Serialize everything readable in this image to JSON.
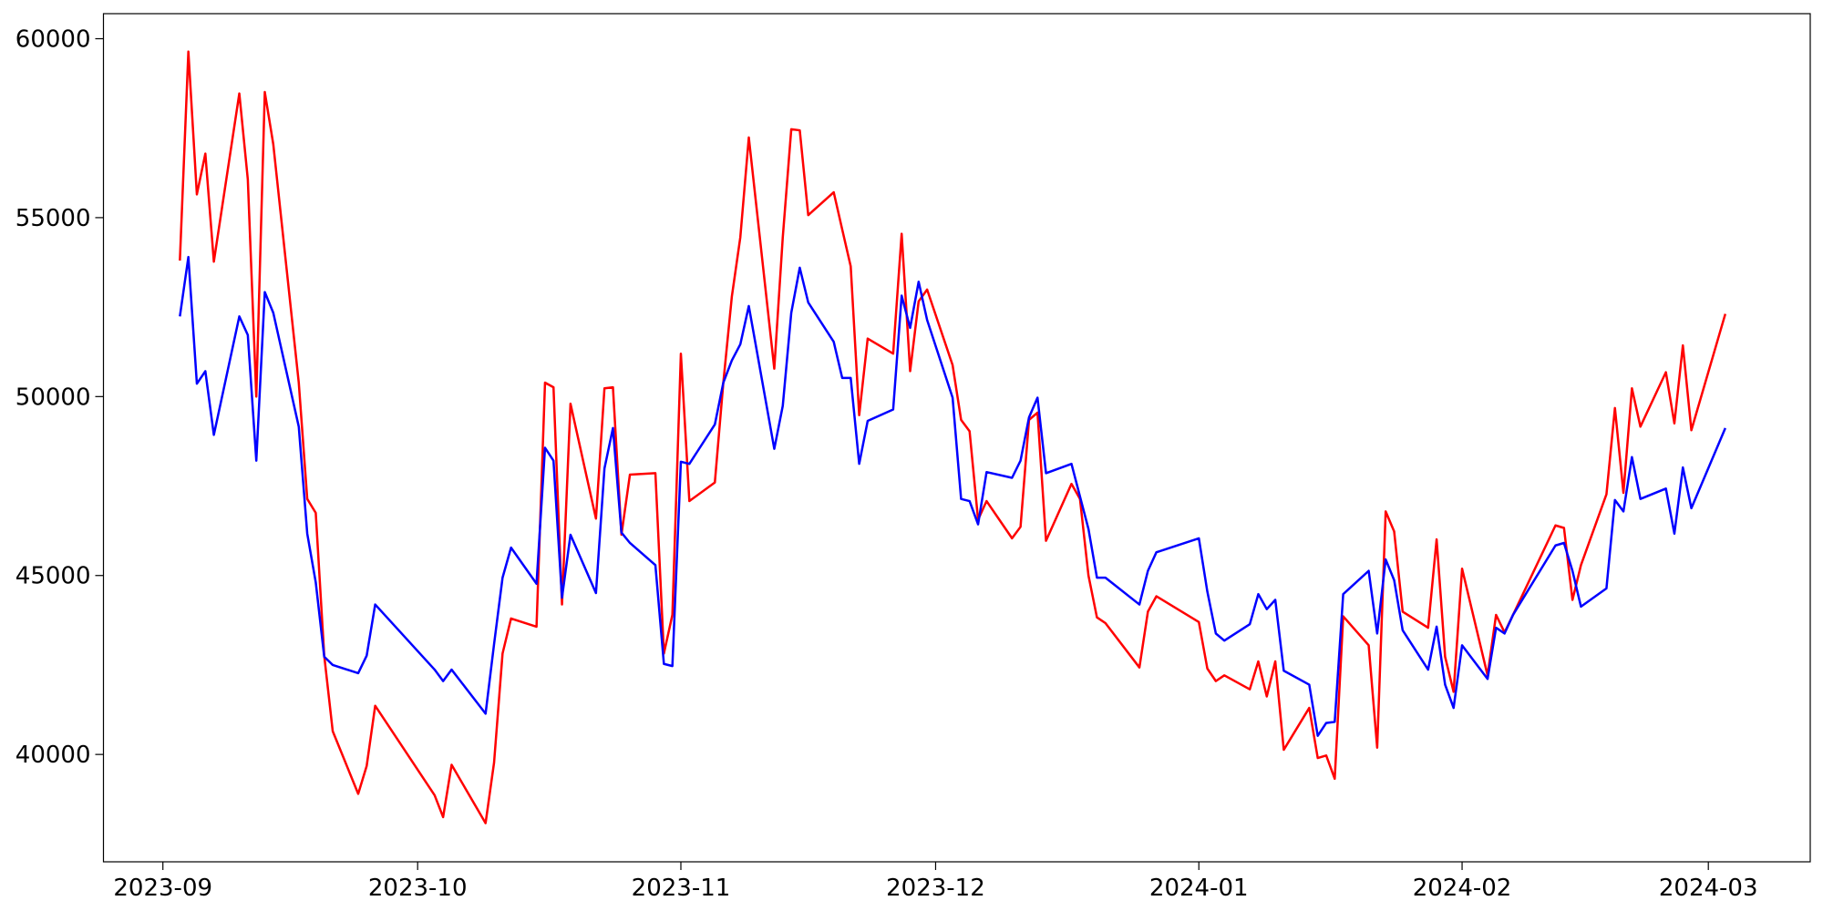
{
  "chart_data": {
    "type": "line",
    "x": [
      "2023-09-03",
      "2023-09-04",
      "2023-09-05",
      "2023-09-06",
      "2023-09-07",
      "2023-09-10",
      "2023-09-11",
      "2023-09-12",
      "2023-09-13",
      "2023-09-14",
      "2023-09-17",
      "2023-09-18",
      "2023-09-19",
      "2023-09-20",
      "2023-09-21",
      "2023-09-24",
      "2023-09-25",
      "2023-09-26",
      "2023-10-03",
      "2023-10-04",
      "2023-10-05",
      "2023-10-09",
      "2023-10-10",
      "2023-10-11",
      "2023-10-12",
      "2023-10-15",
      "2023-10-16",
      "2023-10-17",
      "2023-10-18",
      "2023-10-19",
      "2023-10-22",
      "2023-10-23",
      "2023-10-24",
      "2023-10-25",
      "2023-10-26",
      "2023-10-29",
      "2023-10-30",
      "2023-10-31",
      "2023-11-01",
      "2023-11-02",
      "2023-11-05",
      "2023-11-06",
      "2023-11-07",
      "2023-11-08",
      "2023-11-09",
      "2023-11-12",
      "2023-11-13",
      "2023-11-14",
      "2023-11-15",
      "2023-11-16",
      "2023-11-19",
      "2023-11-20",
      "2023-11-21",
      "2023-11-22",
      "2023-11-23",
      "2023-11-26",
      "2023-11-27",
      "2023-11-28",
      "2023-11-29",
      "2023-11-30",
      "2023-12-03",
      "2023-12-04",
      "2023-12-05",
      "2023-12-06",
      "2023-12-07",
      "2023-12-10",
      "2023-12-11",
      "2023-12-12",
      "2023-12-13",
      "2023-12-14",
      "2023-12-17",
      "2023-12-18",
      "2023-12-19",
      "2023-12-20",
      "2023-12-21",
      "2023-12-25",
      "2023-12-26",
      "2023-12-27",
      "2024-01-01",
      "2024-01-02",
      "2024-01-03",
      "2024-01-04",
      "2024-01-07",
      "2024-01-08",
      "2024-01-09",
      "2024-01-10",
      "2024-01-11",
      "2024-01-14",
      "2024-01-15",
      "2024-01-16",
      "2024-01-17",
      "2024-01-18",
      "2024-01-21",
      "2024-01-22",
      "2024-01-23",
      "2024-01-24",
      "2024-01-25",
      "2024-01-28",
      "2024-01-29",
      "2024-01-30",
      "2024-01-31",
      "2024-02-01",
      "2024-02-04",
      "2024-02-05",
      "2024-02-06",
      "2024-02-07",
      "2024-02-12",
      "2024-02-13",
      "2024-02-14",
      "2024-02-15",
      "2024-02-18",
      "2024-02-19",
      "2024-02-20",
      "2024-02-21",
      "2024-02-22",
      "2024-02-25",
      "2024-02-26",
      "2024-02-27",
      "2024-02-28",
      "2024-03-03"
    ],
    "series": [
      {
        "color": "#ff0000",
        "values": [
          53800,
          59640,
          55650,
          56790,
          53770,
          58470,
          56070,
          50000,
          58510,
          57050,
          50390,
          47140,
          46750,
          42760,
          40650,
          38900,
          39680,
          41360,
          38860,
          38250,
          39710,
          38080,
          39770,
          42820,
          43800,
          43570,
          50390,
          50260,
          44190,
          49800,
          46590,
          50230,
          50260,
          46140,
          47820,
          47860,
          42820,
          43900,
          51200,
          47080,
          47600,
          50390,
          52790,
          54450,
          57240,
          50780,
          54450,
          57470,
          57440,
          55070,
          55710,
          54670,
          53640,
          49480,
          51620,
          51200,
          54550,
          50710,
          52660,
          52990,
          50880,
          49350,
          49030,
          46560,
          47080,
          46040,
          46360,
          49350,
          49550,
          45970,
          47560,
          47140,
          45000,
          43830,
          43670,
          42430,
          43990,
          44420,
          43700,
          42400,
          42050,
          42210,
          41820,
          42600,
          41620,
          42600,
          40130,
          41300,
          39900,
          39970,
          39320,
          43860,
          43050,
          40190,
          46790,
          46230,
          43990,
          43540,
          46010,
          42730,
          41750,
          45190,
          42210,
          43900,
          43410,
          43900,
          46400,
          46330,
          44320,
          45290,
          47270,
          49680,
          47310,
          50230,
          49160,
          50680,
          49250,
          51430,
          49060,
          52310
        ]
      },
      {
        "color": "#0000ff",
        "values": [
          52240,
          53900,
          50360,
          50710,
          48930,
          52240,
          51720,
          48210,
          52920,
          52340,
          49160,
          46170,
          44810,
          42730,
          42500,
          42270,
          42760,
          44190,
          42370,
          42050,
          42370,
          41140,
          43080,
          44940,
          45780,
          44770,
          48570,
          48210,
          44380,
          46140,
          44510,
          47990,
          49120,
          46200,
          45910,
          45290,
          42530,
          42470,
          48180,
          48120,
          49220,
          50390,
          51010,
          51460,
          52530,
          48540,
          49740,
          52340,
          53600,
          52630,
          51530,
          50520,
          50520,
          48120,
          49320,
          49640,
          52820,
          51920,
          53210,
          52140,
          49970,
          47140,
          47080,
          46430,
          47890,
          47730,
          48210,
          49420,
          49970,
          47860,
          48120,
          47210,
          46300,
          44940,
          44940,
          44190,
          45130,
          45650,
          46040,
          44550,
          43380,
          43180,
          43640,
          44480,
          44060,
          44320,
          42340,
          41950,
          40520,
          40880,
          40910,
          44480,
          45130,
          43380,
          45450,
          44870,
          43470,
          42370,
          43570,
          41950,
          41300,
          43050,
          42110,
          43540,
          43380,
          43900,
          45840,
          45910,
          45130,
          44130,
          44640,
          47110,
          46790,
          48310,
          47140,
          47430,
          46170,
          48020,
          46880,
          49120
        ]
      }
    ],
    "xlim": [
      "2023-08-25",
      "2024-03-13"
    ],
    "xticks": [
      {
        "value": "2023-09-01",
        "label": "2023-09"
      },
      {
        "value": "2023-10-01",
        "label": "2023-10"
      },
      {
        "value": "2023-11-01",
        "label": "2023-11"
      },
      {
        "value": "2023-12-01",
        "label": "2023-12"
      },
      {
        "value": "2024-01-01",
        "label": "2024-01"
      },
      {
        "value": "2024-02-01",
        "label": "2024-02"
      },
      {
        "value": "2024-03-01",
        "label": "2024-03"
      }
    ],
    "ylim": [
      37000,
      60700
    ],
    "yticks": [
      40000,
      45000,
      50000,
      55000,
      60000
    ],
    "grid": false
  }
}
